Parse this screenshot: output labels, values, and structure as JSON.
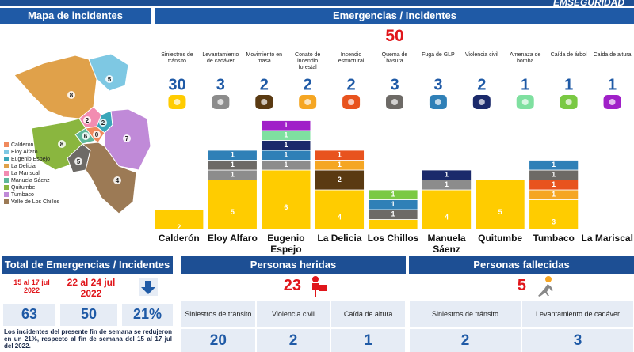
{
  "header": {
    "brand": "EMSEGURIDAD"
  },
  "map": {
    "title": "Mapa de incidentes",
    "legend": [
      {
        "name": "Calderón",
        "color": "#f08a5d"
      },
      {
        "name": "Eloy Alfaro",
        "color": "#7ec8e3"
      },
      {
        "name": "Eugenio Espejo",
        "color": "#3aa6b9"
      },
      {
        "name": "La Delicia",
        "color": "#e0a14a"
      },
      {
        "name": "La Mariscal",
        "color": "#f28cb1"
      },
      {
        "name": "Manuela Sáenz",
        "color": "#5fb89a"
      },
      {
        "name": "Quitumbe",
        "color": "#8ab63f"
      },
      {
        "name": "Tumbaco",
        "color": "#c08ad8"
      },
      {
        "name": "Valle de Los Chillos",
        "color": "#9c7a55"
      }
    ],
    "regions": [
      {
        "value": 5,
        "color": "#7ec8e3"
      },
      {
        "value": 8,
        "color": "#e0a14a"
      },
      {
        "value": 2,
        "color": "#f28cb1"
      },
      {
        "value": 2,
        "color": "#3aa6b9"
      },
      {
        "value": 6,
        "color": "#5fb89a"
      },
      {
        "value": 0,
        "color": "#f08a5d"
      },
      {
        "value": 7,
        "color": "#c08ad8"
      },
      {
        "value": 8,
        "color": "#8ab63f"
      },
      {
        "value": 5,
        "color": "#6d6a66"
      },
      {
        "value": 4,
        "color": "#9c7a55"
      }
    ]
  },
  "chart_data": {
    "type": "bar",
    "stacked": true,
    "title": "Emergencias / Incidentes",
    "total": 50,
    "categories": [
      "Calderón",
      "Eloy Alfaro",
      "Eugenio Espejo",
      "La Delicia",
      "Los Chillos",
      "Manuela Sáenz",
      "Quitumbe",
      "Tumbaco",
      "La Mariscal"
    ],
    "series": [
      {
        "name": "Siniestros de tránsito",
        "color": "#ffcc00",
        "total": 30,
        "values": [
          2,
          5,
          6,
          4,
          1,
          4,
          5,
          3,
          0
        ]
      },
      {
        "name": "Levantamiento de cadáver",
        "color": "#8c8c8c",
        "total": 3,
        "values": [
          0,
          1,
          1,
          0,
          0,
          1,
          0,
          0,
          0
        ]
      },
      {
        "name": "Movimiento en masa",
        "color": "#5a3a12",
        "total": 2,
        "values": [
          0,
          0,
          0,
          2,
          0,
          0,
          0,
          0,
          0
        ]
      },
      {
        "name": "Conato de incendio forestal",
        "color": "#f5a623",
        "total": 2,
        "values": [
          0,
          0,
          0,
          1,
          0,
          0,
          0,
          1,
          0
        ]
      },
      {
        "name": "Incendio estructural",
        "color": "#e8531e",
        "total": 2,
        "values": [
          0,
          0,
          0,
          1,
          0,
          0,
          0,
          1,
          0
        ]
      },
      {
        "name": "Quema de basura",
        "color": "#6d6a66",
        "total": 3,
        "values": [
          0,
          1,
          0,
          0,
          1,
          0,
          0,
          1,
          0
        ]
      },
      {
        "name": "Fuga de GLP",
        "color": "#2f80b7",
        "total": 3,
        "values": [
          0,
          1,
          1,
          0,
          1,
          0,
          0,
          1,
          0
        ]
      },
      {
        "name": "Violencia civil",
        "color": "#1b2a6b",
        "total": 2,
        "values": [
          0,
          0,
          1,
          0,
          0,
          1,
          0,
          0,
          0
        ]
      },
      {
        "name": "Amenaza de bomba",
        "color": "#7fe0a0",
        "total": 1,
        "values": [
          0,
          0,
          1,
          0,
          0,
          0,
          0,
          0,
          0
        ]
      },
      {
        "name": "Caída de árbol",
        "color": "#7ac943",
        "total": 1,
        "values": [
          0,
          0,
          0,
          0,
          1,
          0,
          0,
          0,
          0
        ]
      },
      {
        "name": "Caída de altura",
        "color": "#a020c8",
        "total": 1,
        "values": [
          0,
          0,
          1,
          0,
          0,
          0,
          0,
          0,
          0
        ]
      }
    ]
  },
  "summary": {
    "title": "Total de Emergencias / Incidentes",
    "periods": [
      {
        "label": "15 al 17 jul 2022",
        "value": 63
      },
      {
        "label": "22 al 24 jul 2022",
        "value": 50
      }
    ],
    "change": "21%",
    "note": "Los incidentes del presente fin de semana se redujeron en un 21%, respecto al fin de semana del 15 al 17 jul del 2022."
  },
  "injured": {
    "title": "Personas heridas",
    "total": 23,
    "items": [
      {
        "label": "Siniestros de tránsito",
        "value": 20
      },
      {
        "label": "Violencia civil",
        "value": 2
      },
      {
        "label": "Caída de altura",
        "value": 1
      }
    ]
  },
  "deceased": {
    "title": "Personas fallecidas",
    "total": 5,
    "items": [
      {
        "label": "Siniestros de tránsito",
        "value": 2
      },
      {
        "label": "Levantamiento de cadáver",
        "value": 3
      }
    ]
  }
}
